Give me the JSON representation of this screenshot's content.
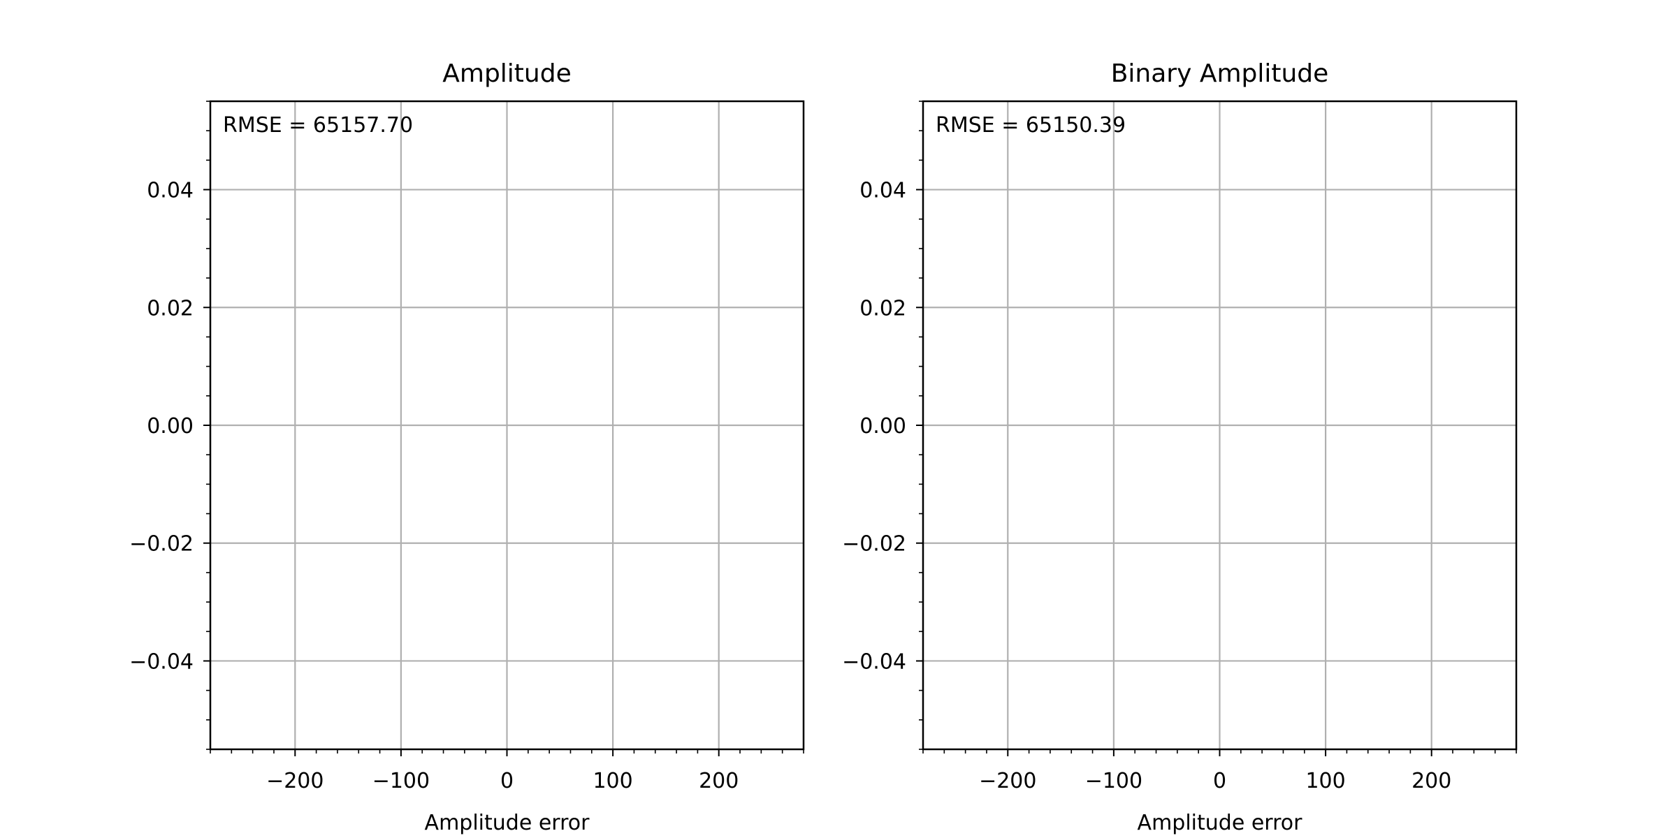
{
  "chart_data": [
    {
      "type": "scatter",
      "title": "Amplitude",
      "xlabel": "Amplitude error",
      "ylabel": "",
      "annotation": "RMSE = 65157.70",
      "xlim": [
        -280,
        280
      ],
      "ylim": [
        -0.055,
        0.055
      ],
      "xticks": [
        -200,
        -100,
        0,
        100,
        200
      ],
      "xtick_labels": [
        "−200",
        "−100",
        "0",
        "100",
        "200"
      ],
      "yticks": [
        -0.04,
        -0.02,
        0.0,
        0.02,
        0.04
      ],
      "ytick_labels": [
        "−0.04",
        "−0.02",
        "0.00",
        "0.02",
        "0.04"
      ],
      "grid": true,
      "series": []
    },
    {
      "type": "scatter",
      "title": "Binary Amplitude",
      "xlabel": "Amplitude error",
      "ylabel": "",
      "annotation": "RMSE = 65150.39",
      "xlim": [
        -280,
        280
      ],
      "ylim": [
        -0.055,
        0.055
      ],
      "xticks": [
        -200,
        -100,
        0,
        100,
        200
      ],
      "xtick_labels": [
        "−200",
        "−100",
        "0",
        "100",
        "200"
      ],
      "yticks": [
        -0.04,
        -0.02,
        0.0,
        0.02,
        0.04
      ],
      "ytick_labels": [
        "−0.04",
        "−0.02",
        "0.00",
        "0.02",
        "0.04"
      ],
      "grid": true,
      "series": []
    }
  ]
}
